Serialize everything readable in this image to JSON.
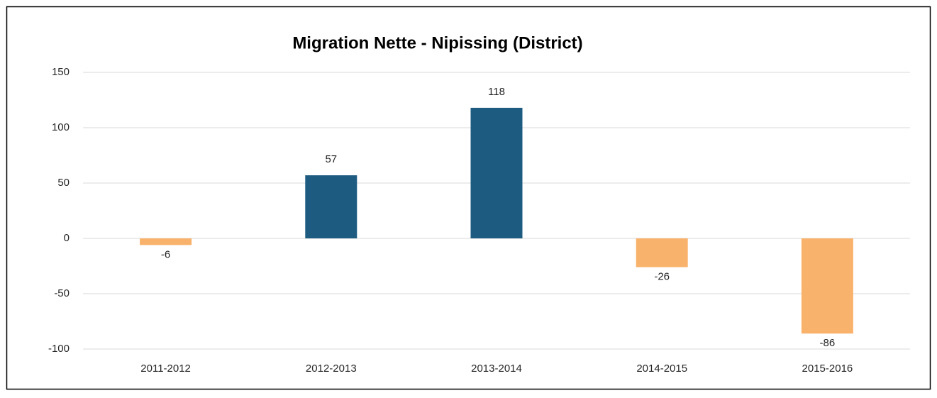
{
  "chart_data": {
    "type": "bar",
    "title": "Migration Nette - Nipissing (District)",
    "categories": [
      "2011-2012",
      "2012-2013",
      "2013-2014",
      "2014-2015",
      "2015-2016"
    ],
    "values": [
      -6,
      57,
      118,
      -26,
      -86
    ],
    "colors": [
      "#f9b26b",
      "#1d5b80",
      "#1d5b80",
      "#f9b26b",
      "#f9b26b"
    ],
    "ylim": [
      -100,
      150
    ],
    "yticks": [
      -100,
      -50,
      0,
      50,
      100,
      150
    ],
    "grid": true
  }
}
